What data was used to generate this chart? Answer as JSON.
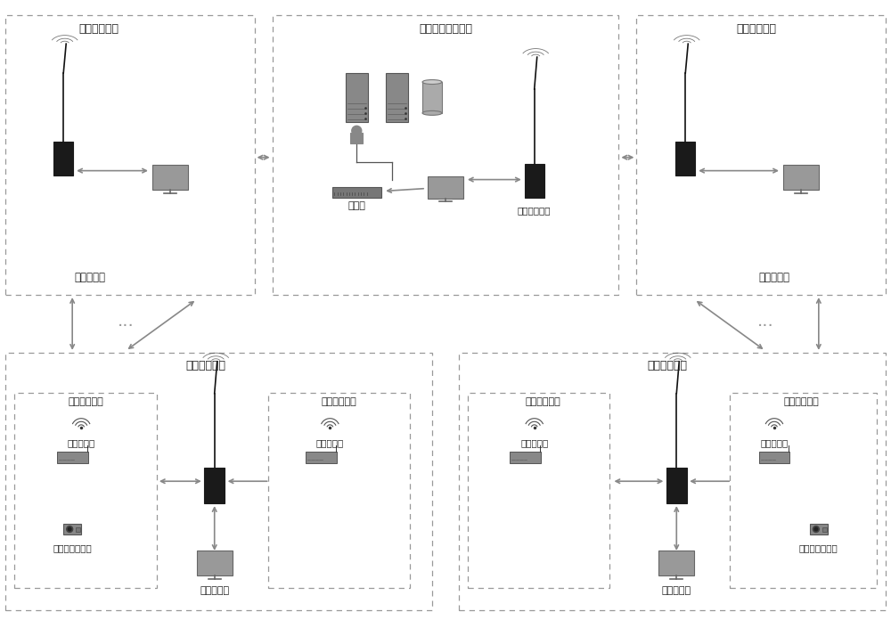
{
  "bg_color": "#ffffff",
  "labels": {
    "region_monitor": "区域监测单元",
    "backend_center": "后台数据中心单元",
    "region_center_station": "区域中心站",
    "factory_monitor": "厂域监测单元",
    "front_detect": "前端检测单元",
    "gas_detector": "气体检测仪",
    "hd_camera": "高清网络摄像机",
    "factory_center": "厂域中心站",
    "switch": "交换机",
    "wireless_radio": "无线数传电台"
  }
}
